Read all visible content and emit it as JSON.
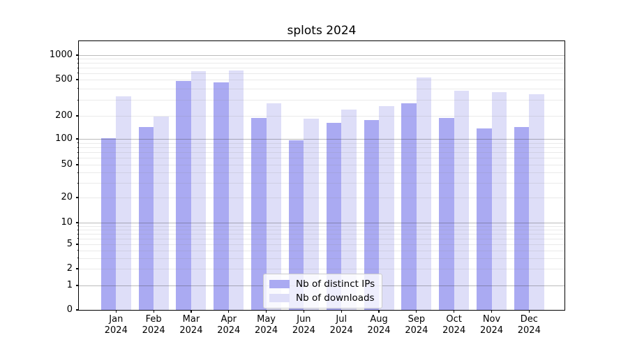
{
  "title": "splots 2024",
  "y_axis": {
    "tick_labels": [
      "1000",
      "500",
      "200",
      "100",
      "50",
      "20",
      "10",
      "5",
      "2",
      "1",
      "0"
    ]
  },
  "x_axis": {
    "months": [
      "Jan",
      "Feb",
      "Mar",
      "Apr",
      "May",
      "Jun",
      "Jul",
      "Aug",
      "Sep",
      "Oct",
      "Nov",
      "Dec"
    ],
    "year": "2024"
  },
  "legend": {
    "items": [
      "Nb of distinct IPs",
      "Nb of downloads"
    ]
  },
  "colors": {
    "distinct_ips_bar": "#aaaaf2",
    "downloads_bar": "#dedef8",
    "major_grid": "#bbbbbb",
    "minor_grid": "#eaeaea"
  },
  "chart_data": {
    "type": "bar",
    "title": "splots 2024",
    "categories": [
      "Jan 2024",
      "Feb 2024",
      "Mar 2024",
      "Apr 2024",
      "May 2024",
      "Jun 2024",
      "Jul 2024",
      "Aug 2024",
      "Sep 2024",
      "Oct 2024",
      "Nov 2024",
      "Dec 2024"
    ],
    "series": [
      {
        "name": "Nb of distinct IPs",
        "color": "#aaaaf2",
        "values": [
          102,
          143,
          480,
          465,
          187,
          96,
          162,
          175,
          276,
          189,
          137,
          143
        ]
      },
      {
        "name": "Nb of downloads",
        "color": "#dedef8",
        "values": [
          330,
          197,
          640,
          650,
          275,
          184,
          235,
          255,
          530,
          380,
          365,
          345
        ]
      }
    ],
    "xlabel": "",
    "ylabel": "",
    "yscale": "symlog",
    "y_ticks": [
      0,
      1,
      2,
      5,
      10,
      20,
      50,
      100,
      200,
      500,
      1000
    ],
    "ylim": [
      0,
      1400
    ],
    "grid": "both",
    "legend_position": "lower center inside axes"
  }
}
